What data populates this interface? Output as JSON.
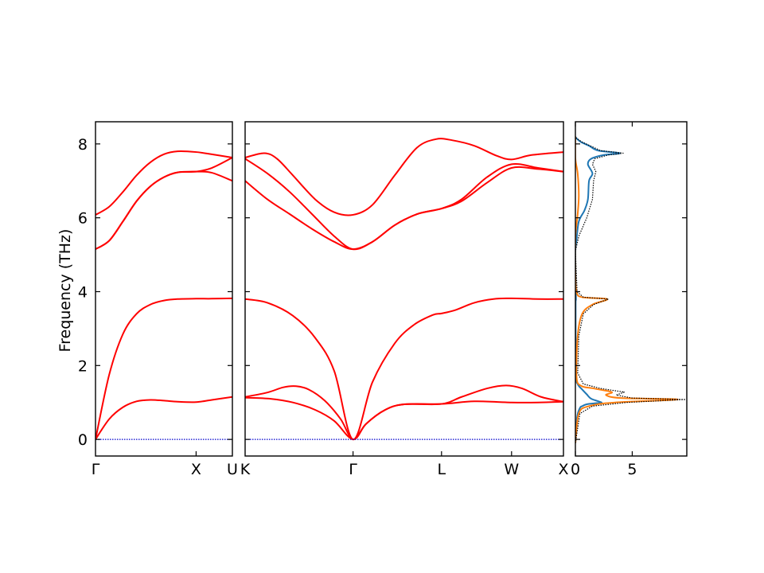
{
  "ylabel": "Frequency (THz)",
  "chart_data": [
    {
      "type": "line",
      "panel": "band-left",
      "ylabel": "Frequency (THz)",
      "ylim": [
        -0.45,
        8.6
      ],
      "yticks": [
        0,
        2,
        4,
        6,
        8
      ],
      "xticks": [
        {
          "pos": 0,
          "label": "Γ"
        },
        {
          "pos": 0.735,
          "label": "X"
        },
        {
          "pos": 1,
          "label": "U"
        }
      ],
      "series": [
        {
          "color": "#ff0000",
          "points": [
            [
              0,
              0
            ],
            [
              0.1,
              1.75
            ],
            [
              0.2,
              2.85
            ],
            [
              0.3,
              3.4
            ],
            [
              0.4,
              3.65
            ],
            [
              0.5,
              3.76
            ],
            [
              0.6,
              3.8
            ],
            [
              0.735,
              3.81
            ],
            [
              0.85,
              3.81
            ],
            [
              1,
              3.82
            ]
          ]
        },
        {
          "color": "#ff0000",
          "points": [
            [
              0,
              0
            ],
            [
              0.1,
              0.55
            ],
            [
              0.2,
              0.87
            ],
            [
              0.3,
              1.03
            ],
            [
              0.4,
              1.07
            ],
            [
              0.5,
              1.05
            ],
            [
              0.6,
              1.02
            ],
            [
              0.735,
              1.01
            ],
            [
              0.85,
              1.07
            ],
            [
              1,
              1.15
            ]
          ]
        },
        {
          "color": "#ff0000",
          "points": [
            [
              0,
              5.15
            ],
            [
              0.1,
              5.38
            ],
            [
              0.2,
              5.9
            ],
            [
              0.3,
              6.45
            ],
            [
              0.4,
              6.85
            ],
            [
              0.5,
              7.1
            ],
            [
              0.6,
              7.23
            ],
            [
              0.735,
              7.25
            ],
            [
              0.85,
              7.22
            ],
            [
              1,
              7.0
            ]
          ]
        },
        {
          "color": "#ff0000",
          "points": [
            [
              0,
              5.15
            ],
            [
              0.1,
              5.38
            ],
            [
              0.2,
              5.9
            ],
            [
              0.3,
              6.45
            ],
            [
              0.4,
              6.85
            ],
            [
              0.5,
              7.1
            ],
            [
              0.6,
              7.23
            ],
            [
              0.735,
              7.25
            ],
            [
              0.85,
              7.35
            ],
            [
              1,
              7.63
            ]
          ]
        },
        {
          "color": "#ff0000",
          "points": [
            [
              0,
              6.08
            ],
            [
              0.1,
              6.3
            ],
            [
              0.2,
              6.7
            ],
            [
              0.3,
              7.15
            ],
            [
              0.4,
              7.5
            ],
            [
              0.5,
              7.72
            ],
            [
              0.6,
              7.8
            ],
            [
              0.735,
              7.78
            ],
            [
              0.85,
              7.72
            ],
            [
              1,
              7.63
            ]
          ]
        },
        {
          "color": "#0000cc",
          "style": "dotted",
          "points": [
            [
              0,
              0
            ],
            [
              1,
              0
            ]
          ]
        }
      ]
    },
    {
      "type": "line",
      "panel": "band-middle",
      "ylim": [
        -0.45,
        8.6
      ],
      "xticks": [
        {
          "pos": 0,
          "label": "K"
        },
        {
          "pos": 0.339,
          "label": "Γ"
        },
        {
          "pos": 0.617,
          "label": "L"
        },
        {
          "pos": 0.837,
          "label": "W"
        },
        {
          "pos": 1,
          "label": "X"
        }
      ],
      "series": [
        {
          "color": "#ff0000",
          "points": [
            [
              0,
              3.8
            ],
            [
              0.07,
              3.7
            ],
            [
              0.15,
              3.35
            ],
            [
              0.22,
              2.75
            ],
            [
              0.28,
              1.85
            ],
            [
              0.339,
              0
            ],
            [
              0.4,
              1.55
            ],
            [
              0.47,
              2.6
            ],
            [
              0.53,
              3.1
            ],
            [
              0.59,
              3.37
            ],
            [
              0.617,
              3.41
            ],
            [
              0.66,
              3.5
            ],
            [
              0.72,
              3.7
            ],
            [
              0.78,
              3.8
            ],
            [
              0.837,
              3.82
            ],
            [
              0.92,
              3.8
            ],
            [
              1,
              3.8
            ]
          ]
        },
        {
          "color": "#ff0000",
          "points": [
            [
              0,
              1.15
            ],
            [
              0.07,
              1.27
            ],
            [
              0.12,
              1.41
            ],
            [
              0.16,
              1.44
            ],
            [
              0.2,
              1.35
            ],
            [
              0.25,
              1.05
            ],
            [
              0.3,
              0.55
            ],
            [
              0.339,
              0
            ],
            [
              0.38,
              0.42
            ],
            [
              0.44,
              0.8
            ],
            [
              0.5,
              0.95
            ],
            [
              0.617,
              0.96
            ],
            [
              0.68,
              1.15
            ],
            [
              0.76,
              1.38
            ],
            [
              0.82,
              1.46
            ],
            [
              0.87,
              1.38
            ],
            [
              0.93,
              1.15
            ],
            [
              1,
              1.02
            ]
          ]
        },
        {
          "color": "#ff0000",
          "points": [
            [
              0,
              1.13
            ],
            [
              0.08,
              1.1
            ],
            [
              0.15,
              1.0
            ],
            [
              0.22,
              0.8
            ],
            [
              0.28,
              0.5
            ],
            [
              0.339,
              0
            ],
            [
              0.38,
              0.42
            ],
            [
              0.44,
              0.8
            ],
            [
              0.5,
              0.95
            ],
            [
              0.617,
              0.96
            ],
            [
              0.72,
              1.03
            ],
            [
              0.837,
              1.0
            ],
            [
              0.92,
              1.0
            ],
            [
              1,
              1.02
            ]
          ]
        },
        {
          "color": "#ff0000",
          "points": [
            [
              0,
              7.63
            ],
            [
              0.06,
              7.75
            ],
            [
              0.1,
              7.6
            ],
            [
              0.15,
              7.15
            ],
            [
              0.22,
              6.5
            ],
            [
              0.28,
              6.15
            ],
            [
              0.339,
              6.08
            ],
            [
              0.4,
              6.35
            ],
            [
              0.47,
              7.15
            ],
            [
              0.54,
              7.9
            ],
            [
              0.6,
              8.13
            ],
            [
              0.65,
              8.1
            ],
            [
              0.72,
              7.95
            ],
            [
              0.79,
              7.68
            ],
            [
              0.837,
              7.58
            ],
            [
              0.9,
              7.7
            ],
            [
              1,
              7.78
            ]
          ]
        },
        {
          "color": "#ff0000",
          "points": [
            [
              0,
              7.6
            ],
            [
              0.07,
              7.2
            ],
            [
              0.14,
              6.7
            ],
            [
              0.21,
              6.1
            ],
            [
              0.28,
              5.5
            ],
            [
              0.339,
              5.15
            ],
            [
              0.4,
              5.35
            ],
            [
              0.47,
              5.8
            ],
            [
              0.54,
              6.1
            ],
            [
              0.617,
              6.25
            ],
            [
              0.68,
              6.5
            ],
            [
              0.76,
              7.1
            ],
            [
              0.837,
              7.45
            ],
            [
              0.92,
              7.35
            ],
            [
              1,
              7.25
            ]
          ]
        },
        {
          "color": "#ff0000",
          "points": [
            [
              0,
              7.0
            ],
            [
              0.07,
              6.5
            ],
            [
              0.14,
              6.1
            ],
            [
              0.21,
              5.7
            ],
            [
              0.28,
              5.35
            ],
            [
              0.339,
              5.15
            ],
            [
              0.4,
              5.35
            ],
            [
              0.47,
              5.8
            ],
            [
              0.54,
              6.1
            ],
            [
              0.617,
              6.25
            ],
            [
              0.68,
              6.45
            ],
            [
              0.76,
              6.95
            ],
            [
              0.837,
              7.35
            ],
            [
              0.92,
              7.32
            ],
            [
              1,
              7.25
            ]
          ]
        },
        {
          "color": "#0000cc",
          "style": "dotted",
          "points": [
            [
              0,
              0
            ],
            [
              1,
              0
            ]
          ]
        }
      ]
    },
    {
      "type": "line",
      "panel": "dos",
      "xlim": [
        0,
        9.8
      ],
      "ylim": [
        -0.45,
        8.6
      ],
      "xticks": [
        {
          "pos": 0,
          "label": "0"
        },
        {
          "pos": 5,
          "label": "5"
        }
      ],
      "series": [
        {
          "color": "#1f77b4",
          "points": [
            [
              0,
              -0.1
            ],
            [
              0.15,
              0.6
            ],
            [
              0.4,
              0.85
            ],
            [
              0.6,
              0.9
            ],
            [
              1.0,
              0.95
            ],
            [
              1.8,
              0.98
            ],
            [
              2.3,
              1.0
            ],
            [
              1.4,
              1.1
            ],
            [
              1.0,
              1.22
            ],
            [
              0.6,
              1.35
            ],
            [
              0.2,
              1.5
            ],
            [
              0.05,
              1.8
            ],
            [
              0.02,
              3.6
            ],
            [
              0.05,
              3.8
            ],
            [
              0.02,
              4.2
            ],
            [
              0,
              5.1
            ],
            [
              0.1,
              5.4
            ],
            [
              0.3,
              5.9
            ],
            [
              0.8,
              6.2
            ],
            [
              1.1,
              6.5
            ],
            [
              1.2,
              7.0
            ],
            [
              1.5,
              7.2
            ],
            [
              1.1,
              7.45
            ],
            [
              1.4,
              7.6
            ],
            [
              2.5,
              7.7
            ],
            [
              3.9,
              7.75
            ],
            [
              2.0,
              7.82
            ],
            [
              1.2,
              7.95
            ],
            [
              0.5,
              8.05
            ],
            [
              0.1,
              8.15
            ],
            [
              0,
              8.2
            ]
          ]
        },
        {
          "color": "#ff7f0e",
          "points": [
            [
              0,
              -0.1
            ],
            [
              0.3,
              0.7
            ],
            [
              1.2,
              0.9
            ],
            [
              3.5,
              1.0
            ],
            [
              9.0,
              1.08
            ],
            [
              4.0,
              1.12
            ],
            [
              2.7,
              1.2
            ],
            [
              3.2,
              1.28
            ],
            [
              1.6,
              1.38
            ],
            [
              0.5,
              1.45
            ],
            [
              0.1,
              1.7
            ],
            [
              0.2,
              2.8
            ],
            [
              0.6,
              3.4
            ],
            [
              1.5,
              3.65
            ],
            [
              2.8,
              3.8
            ],
            [
              0.6,
              3.85
            ],
            [
              0.1,
              4.0
            ],
            [
              0,
              4.5
            ],
            [
              0,
              5.5
            ],
            [
              0.2,
              6.1
            ],
            [
              0.3,
              6.6
            ],
            [
              0.2,
              7.2
            ],
            [
              0,
              7.6
            ],
            [
              0,
              8.2
            ]
          ]
        },
        {
          "color": "#000000",
          "style": "dotted",
          "points": [
            [
              0,
              -0.1
            ],
            [
              0.4,
              0.7
            ],
            [
              1.5,
              0.9
            ],
            [
              4.5,
              1.0
            ],
            [
              9.7,
              1.08
            ],
            [
              5.0,
              1.12
            ],
            [
              3.6,
              1.2
            ],
            [
              4.3,
              1.28
            ],
            [
              2.2,
              1.38
            ],
            [
              0.7,
              1.5
            ],
            [
              0.2,
              1.8
            ],
            [
              0.3,
              2.8
            ],
            [
              0.7,
              3.4
            ],
            [
              1.6,
              3.65
            ],
            [
              2.9,
              3.8
            ],
            [
              0.7,
              3.85
            ],
            [
              0.15,
              4.0
            ],
            [
              0,
              5.1
            ],
            [
              0.3,
              5.5
            ],
            [
              1.0,
              6.0
            ],
            [
              1.5,
              6.5
            ],
            [
              1.6,
              7.0
            ],
            [
              1.8,
              7.25
            ],
            [
              1.5,
              7.45
            ],
            [
              1.7,
              7.6
            ],
            [
              2.9,
              7.7
            ],
            [
              4.2,
              7.75
            ],
            [
              2.2,
              7.82
            ],
            [
              1.3,
              7.95
            ],
            [
              0.6,
              8.05
            ],
            [
              0.1,
              8.15
            ],
            [
              0,
              8.2
            ]
          ]
        }
      ]
    }
  ]
}
